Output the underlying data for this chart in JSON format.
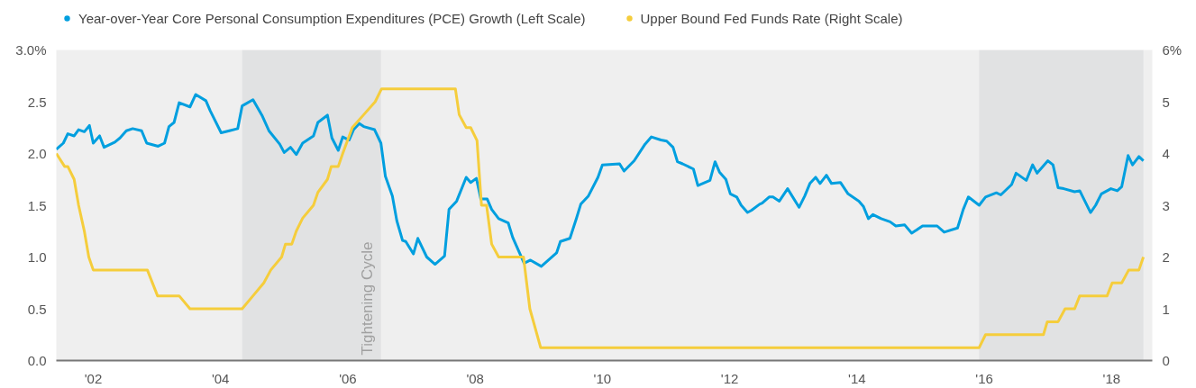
{
  "chart_data": {
    "type": "line",
    "xlim": [
      2001.42,
      2018.64
    ],
    "ylim": [
      0,
      3
    ],
    "y2lim": [
      0,
      6
    ],
    "grid": false,
    "legend": "top",
    "xticks": [
      {
        "value": 2002,
        "label": "'02"
      },
      {
        "value": 2004,
        "label": "'04"
      },
      {
        "value": 2006,
        "label": "'06"
      },
      {
        "value": 2008,
        "label": "'08"
      },
      {
        "value": 2010,
        "label": "'10"
      },
      {
        "value": 2012,
        "label": "'12"
      },
      {
        "value": 2014,
        "label": "'14"
      },
      {
        "value": 2016,
        "label": "'16"
      },
      {
        "value": 2018,
        "label": "'18"
      }
    ],
    "yticks": [
      {
        "value": 0,
        "label": "0.0"
      },
      0.5,
      {
        "value": 1,
        "label": "1.0"
      },
      1.5,
      {
        "value": 2,
        "label": "2.0"
      },
      2.5,
      {
        "value": 3,
        "label": "3.0%"
      }
    ],
    "y2ticks": [
      0,
      1,
      2,
      3,
      4,
      5,
      {
        "value": 6,
        "label": "6%"
      }
    ],
    "bands": [
      {
        "axis": "x",
        "from": 2004.34,
        "to": 2006.52,
        "label": "Tightening Cycle",
        "color": "#e1e2e3"
      },
      {
        "axis": "x",
        "from": 2015.92,
        "to": 2018.5,
        "color": "#e1e2e3"
      }
    ],
    "series": [
      {
        "name": "Year-over-Year Core Personal Consumption Expenditures (PCE) Growth (Left Scale)",
        "color": "#009fdf",
        "x": [
          2001.42,
          2001.53,
          2001.6,
          2001.7,
          2001.77,
          2001.86,
          2001.94,
          2002.0,
          2002.1,
          2002.17,
          2002.34,
          2002.42,
          2002.52,
          2002.62,
          2002.76,
          2002.84,
          2003.02,
          2003.12,
          2003.19,
          2003.27,
          2003.35,
          2003.52,
          2003.61,
          2003.77,
          2003.84,
          2004.01,
          2004.27,
          2004.34,
          2004.51,
          2004.65,
          2004.76,
          2004.93,
          2005.0,
          2005.1,
          2005.19,
          2005.29,
          2005.46,
          2005.53,
          2005.68,
          2005.75,
          2005.85,
          2005.92,
          2006.02,
          2006.09,
          2006.18,
          2006.25,
          2006.42,
          2006.52,
          2006.59,
          2006.7,
          2006.77,
          2006.86,
          2006.91,
          2007.03,
          2007.1,
          2007.24,
          2007.37,
          2007.52,
          2007.59,
          2007.71,
          2007.86,
          2007.93,
          2008.02,
          2008.09,
          2008.19,
          2008.26,
          2008.37,
          2008.52,
          2008.59,
          2008.77,
          2008.87,
          2009.04,
          2009.28,
          2009.34,
          2009.49,
          2009.59,
          2009.66,
          2009.78,
          2009.93,
          2010.0,
          2010.27,
          2010.34,
          2010.5,
          2010.67,
          2010.77,
          2010.92,
          2011.01,
          2011.11,
          2011.18,
          2011.26,
          2011.43,
          2011.5,
          2011.69,
          2011.77,
          2011.84,
          2011.94,
          2012.01,
          2012.11,
          2012.18,
          2012.28,
          2012.34,
          2012.47,
          2012.51,
          2012.62,
          2012.68,
          2012.78,
          2012.91,
          2013.09,
          2013.18,
          2013.26,
          2013.35,
          2013.42,
          2013.52,
          2013.6,
          2013.74,
          2013.86,
          2014.03,
          2014.1,
          2014.18,
          2014.25,
          2014.38,
          2014.52,
          2014.61,
          2014.75,
          2014.86,
          2015.03,
          2015.26,
          2015.37,
          2015.58,
          2015.67,
          2015.75,
          2015.92,
          2016.02,
          2016.19,
          2016.26,
          2016.43,
          2016.5,
          2016.66,
          2016.76,
          2016.83,
          2017.0,
          2017.08,
          2017.16,
          2017.25,
          2017.42,
          2017.5,
          2017.67,
          2017.75,
          2017.84,
          2017.99,
          2018.09,
          2018.16,
          2018.26,
          2018.33,
          2018.43,
          2018.5
        ],
        "values": [
          2.04,
          2.1,
          2.19,
          2.17,
          2.23,
          2.21,
          2.27,
          2.1,
          2.17,
          2.06,
          2.11,
          2.15,
          2.22,
          2.24,
          2.22,
          2.1,
          2.07,
          2.1,
          2.26,
          2.3,
          2.49,
          2.45,
          2.57,
          2.51,
          2.41,
          2.2,
          2.24,
          2.46,
          2.52,
          2.37,
          2.22,
          2.09,
          2.01,
          2.06,
          1.99,
          2.1,
          2.17,
          2.3,
          2.37,
          2.15,
          2.03,
          2.16,
          2.13,
          2.23,
          2.29,
          2.26,
          2.23,
          2.1,
          1.78,
          1.59,
          1.35,
          1.16,
          1.15,
          1.03,
          1.18,
          1.0,
          0.93,
          1.01,
          1.46,
          1.54,
          1.77,
          1.72,
          1.76,
          1.56,
          1.56,
          1.46,
          1.37,
          1.33,
          1.19,
          0.94,
          0.97,
          0.91,
          1.04,
          1.15,
          1.18,
          1.37,
          1.51,
          1.59,
          1.77,
          1.89,
          1.9,
          1.83,
          1.93,
          2.09,
          2.16,
          2.13,
          2.12,
          2.06,
          1.92,
          1.9,
          1.85,
          1.69,
          1.74,
          1.92,
          1.82,
          1.75,
          1.61,
          1.58,
          1.5,
          1.43,
          1.45,
          1.51,
          1.52,
          1.58,
          1.58,
          1.54,
          1.66,
          1.48,
          1.59,
          1.71,
          1.77,
          1.71,
          1.79,
          1.71,
          1.72,
          1.61,
          1.54,
          1.49,
          1.37,
          1.41,
          1.37,
          1.34,
          1.3,
          1.31,
          1.23,
          1.3,
          1.3,
          1.24,
          1.28,
          1.46,
          1.58,
          1.5,
          1.58,
          1.62,
          1.6,
          1.7,
          1.81,
          1.74,
          1.89,
          1.81,
          1.93,
          1.89,
          1.67,
          1.66,
          1.63,
          1.64,
          1.43,
          1.5,
          1.61,
          1.66,
          1.64,
          1.68,
          1.98,
          1.89,
          1.97,
          1.93
        ]
      },
      {
        "name": "Upper Bound Fed Funds Rate (Right Scale)",
        "color": "#f5cd3c",
        "axis": "y2",
        "x": [
          2001.42,
          2001.55,
          2001.6,
          2001.7,
          2001.77,
          2001.86,
          2001.93,
          2002.0,
          2002.85,
          2003.01,
          2003.35,
          2003.52,
          2004.34,
          2004.51,
          2004.68,
          2004.79,
          2004.96,
          2005.02,
          2005.12,
          2005.19,
          2005.29,
          2005.46,
          2005.53,
          2005.68,
          2005.74,
          2005.85,
          2005.92,
          2006.07,
          2006.25,
          2006.43,
          2006.53,
          2007.69,
          2007.75,
          2007.86,
          2007.93,
          2008.03,
          2008.1,
          2008.18,
          2008.26,
          2008.37,
          2008.76,
          2008.86,
          2009.03,
          2015.92,
          2016.02,
          2016.93,
          2016.99,
          2017.16,
          2017.27,
          2017.42,
          2017.5,
          2017.93,
          2018.01,
          2018.16,
          2018.27,
          2018.43,
          2018.5
        ],
        "values": [
          4.0,
          3.75,
          3.75,
          3.5,
          3.0,
          2.5,
          2.0,
          1.75,
          1.75,
          1.25,
          1.25,
          1.0,
          1.0,
          1.25,
          1.5,
          1.75,
          2.0,
          2.25,
          2.25,
          2.5,
          2.75,
          3.0,
          3.25,
          3.5,
          3.75,
          3.75,
          4.0,
          4.5,
          4.75,
          5.0,
          5.25,
          5.25,
          4.75,
          4.5,
          4.5,
          4.25,
          3.0,
          3.0,
          2.25,
          2.0,
          2.0,
          1.0,
          0.25,
          0.25,
          0.5,
          0.5,
          0.75,
          0.75,
          1.0,
          1.0,
          1.25,
          1.25,
          1.5,
          1.5,
          1.75,
          1.75,
          2.0
        ]
      }
    ]
  }
}
